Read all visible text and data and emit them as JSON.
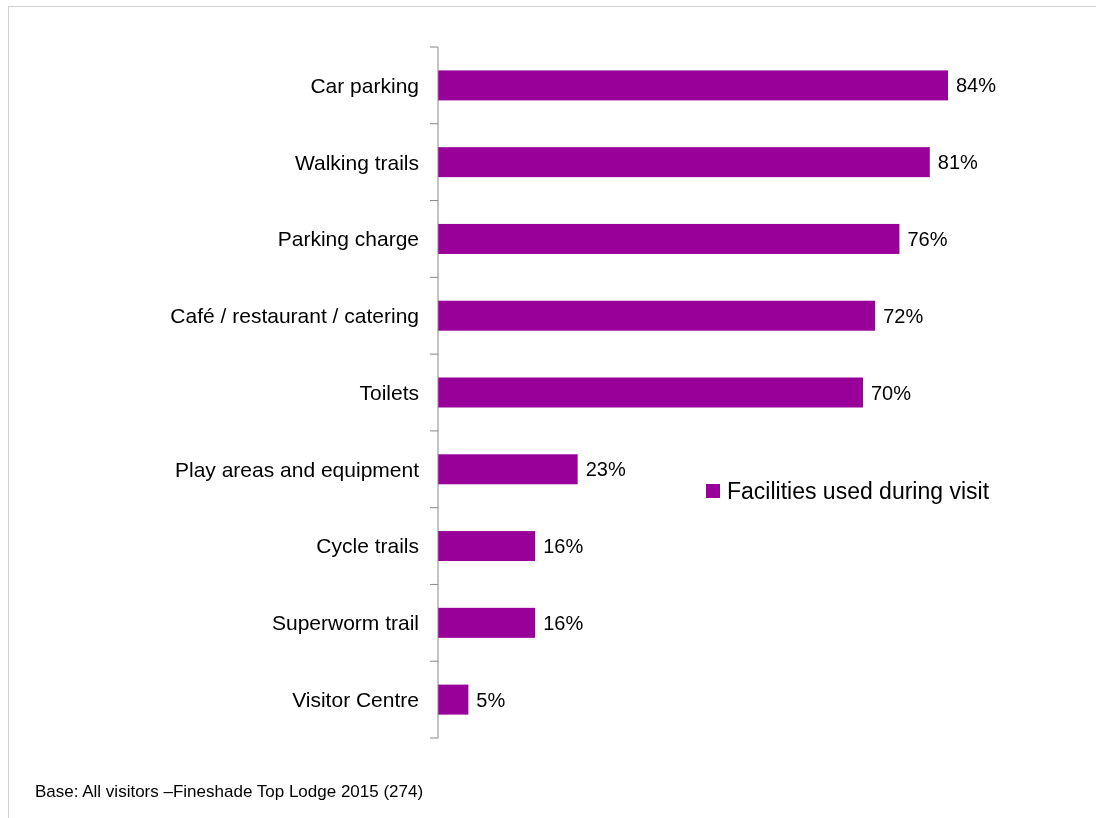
{
  "chart_data": {
    "type": "bar",
    "orientation": "horizontal",
    "categories": [
      "Car parking",
      "Walking trails",
      "Parking charge",
      "Café / restaurant / catering",
      "Toilets",
      "Play areas and equipment",
      "Cycle trails",
      "Superworm trail",
      "Visitor Centre"
    ],
    "series": [
      {
        "name": "Facilities used during visit",
        "color": "#990099",
        "values": [
          84,
          81,
          76,
          72,
          70,
          23,
          16,
          16,
          5
        ],
        "value_labels": [
          "84%",
          "81%",
          "76%",
          "72%",
          "70%",
          "23%",
          "16%",
          "16%",
          "5%"
        ]
      }
    ],
    "legend": "right",
    "annotations": [
      "Base: All visitors –Fineshade Top Lodge 2015 (274)"
    ]
  }
}
